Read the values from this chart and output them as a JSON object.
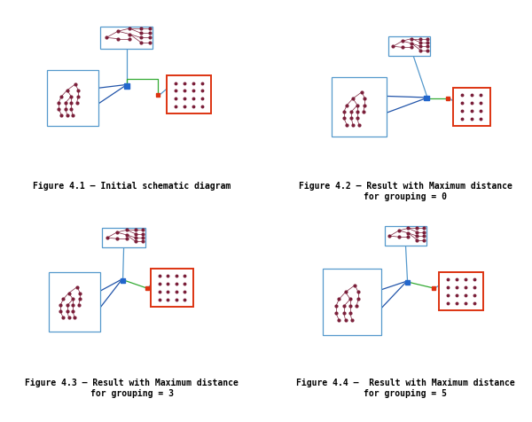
{
  "bg_color": "#ffffff",
  "captions": [
    "Figure 4.1 – Initial schematic diagram",
    "Figure 4.2 – Result with Maximum distance\nfor grouping = 0",
    "Figure 4.3 – Result with Maximum distance\nfor grouping = 3",
    "Figure 4.4 –  Result with Maximum distance\nfor grouping = 5"
  ],
  "node_color": "#7b1f3a",
  "blue_box_color": "#5599cc",
  "red_box_color": "#dd3311",
  "green_line_color": "#33aa33",
  "connector_blue": "#2255aa",
  "connector_blue_sq": "#2266cc",
  "caption_fontsize": 7.0,
  "caption_font": "monospace"
}
